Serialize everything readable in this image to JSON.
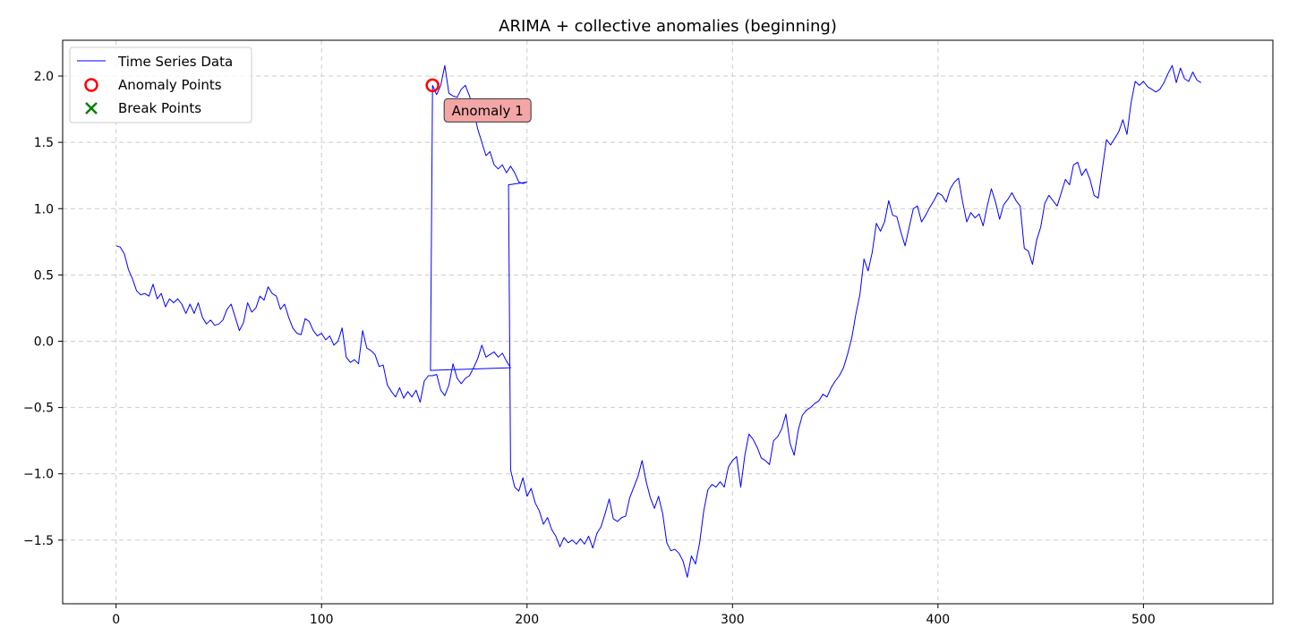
{
  "chart_data": {
    "type": "line",
    "title": "ARIMA + collective anomalies (beginning)",
    "xlabel": "",
    "ylabel": "",
    "xlim": [
      -26,
      563
    ],
    "ylim": [
      -1.98,
      2.27
    ],
    "xticks": [
      0,
      100,
      200,
      300,
      400,
      500
    ],
    "yticks": [
      -1.5,
      -1.0,
      -0.5,
      0.0,
      0.5,
      1.0,
      1.5,
      2.0
    ],
    "grid": true,
    "legend_position": "top-left",
    "legend": [
      {
        "label": "Time Series Data",
        "marker": "line",
        "color": "#0000ff"
      },
      {
        "label": "Anomaly Points",
        "marker": "circle-open",
        "color": "#ff0000"
      },
      {
        "label": "Break Points",
        "marker": "x",
        "color": "#008000"
      }
    ],
    "series": [
      {
        "name": "Time Series Data",
        "color": "#0000ff",
        "points": [
          [
            0,
            0.72
          ],
          [
            2,
            0.71
          ],
          [
            4,
            0.66
          ],
          [
            6,
            0.54
          ],
          [
            8,
            0.47
          ],
          [
            10,
            0.38
          ],
          [
            12,
            0.35
          ],
          [
            14,
            0.36
          ],
          [
            16,
            0.34
          ],
          [
            18,
            0.43
          ],
          [
            20,
            0.32
          ],
          [
            22,
            0.36
          ],
          [
            24,
            0.26
          ],
          [
            26,
            0.32
          ],
          [
            28,
            0.29
          ],
          [
            30,
            0.32
          ],
          [
            32,
            0.28
          ],
          [
            34,
            0.21
          ],
          [
            36,
            0.28
          ],
          [
            38,
            0.21
          ],
          [
            40,
            0.29
          ],
          [
            42,
            0.18
          ],
          [
            44,
            0.13
          ],
          [
            46,
            0.16
          ],
          [
            48,
            0.12
          ],
          [
            50,
            0.13
          ],
          [
            52,
            0.16
          ],
          [
            54,
            0.24
          ],
          [
            56,
            0.28
          ],
          [
            58,
            0.18
          ],
          [
            60,
            0.08
          ],
          [
            62,
            0.14
          ],
          [
            64,
            0.29
          ],
          [
            66,
            0.22
          ],
          [
            68,
            0.25
          ],
          [
            70,
            0.34
          ],
          [
            72,
            0.31
          ],
          [
            74,
            0.41
          ],
          [
            76,
            0.36
          ],
          [
            78,
            0.34
          ],
          [
            80,
            0.24
          ],
          [
            82,
            0.28
          ],
          [
            84,
            0.18
          ],
          [
            86,
            0.1
          ],
          [
            88,
            0.06
          ],
          [
            90,
            0.05
          ],
          [
            92,
            0.17
          ],
          [
            94,
            0.15
          ],
          [
            96,
            0.08
          ],
          [
            98,
            0.04
          ],
          [
            100,
            0.06
          ],
          [
            102,
            0.01
          ],
          [
            104,
            0.04
          ],
          [
            106,
            -0.03
          ],
          [
            108,
            0.0
          ],
          [
            110,
            0.1
          ],
          [
            112,
            -0.12
          ],
          [
            114,
            -0.16
          ],
          [
            116,
            -0.14
          ],
          [
            118,
            -0.17
          ],
          [
            120,
            0.08
          ],
          [
            122,
            -0.05
          ],
          [
            124,
            -0.07
          ],
          [
            126,
            -0.1
          ],
          [
            128,
            -0.19
          ],
          [
            130,
            -0.18
          ],
          [
            132,
            -0.33
          ],
          [
            134,
            -0.38
          ],
          [
            136,
            -0.42
          ],
          [
            138,
            -0.35
          ],
          [
            140,
            -0.43
          ],
          [
            142,
            -0.38
          ],
          [
            144,
            -0.42
          ],
          [
            146,
            -0.37
          ],
          [
            148,
            -0.46
          ],
          [
            150,
            -0.3
          ],
          [
            152,
            -0.26
          ],
          [
            154,
            -0.26
          ],
          [
            156,
            -0.25
          ],
          [
            158,
            -0.37
          ],
          [
            160,
            -0.41
          ],
          [
            162,
            -0.33
          ],
          [
            164,
            -0.17
          ],
          [
            166,
            -0.28
          ],
          [
            168,
            -0.32
          ],
          [
            170,
            -0.28
          ],
          [
            172,
            -0.26
          ],
          [
            174,
            -0.2
          ],
          [
            176,
            -0.13
          ],
          [
            178,
            -0.03
          ],
          [
            180,
            -0.12
          ],
          [
            182,
            -0.1
          ],
          [
            184,
            -0.08
          ],
          [
            186,
            -0.12
          ],
          [
            188,
            -0.09
          ],
          [
            190,
            -0.15
          ],
          [
            192,
            -0.2
          ],
          [
            153,
            -0.22
          ],
          [
            154,
            1.93
          ],
          [
            156,
            1.86
          ],
          [
            158,
            1.93
          ],
          [
            160,
            2.08
          ],
          [
            162,
            1.87
          ],
          [
            164,
            1.85
          ],
          [
            166,
            1.84
          ],
          [
            168,
            1.9
          ],
          [
            170,
            1.93
          ],
          [
            172,
            1.85
          ],
          [
            174,
            1.74
          ],
          [
            176,
            1.6
          ],
          [
            178,
            1.5
          ],
          [
            180,
            1.4
          ],
          [
            182,
            1.43
          ],
          [
            184,
            1.33
          ],
          [
            186,
            1.3
          ],
          [
            188,
            1.33
          ],
          [
            190,
            1.27
          ],
          [
            192,
            1.32
          ],
          [
            194,
            1.27
          ],
          [
            196,
            1.2
          ],
          [
            198,
            1.19
          ],
          [
            200,
            1.2
          ],
          [
            191,
            1.18
          ],
          [
            192,
            -0.97
          ],
          [
            194,
            -1.1
          ],
          [
            196,
            -1.13
          ],
          [
            198,
            -1.03
          ],
          [
            200,
            -1.17
          ],
          [
            202,
            -1.11
          ],
          [
            204,
            -1.22
          ],
          [
            206,
            -1.28
          ],
          [
            208,
            -1.38
          ],
          [
            210,
            -1.33
          ],
          [
            212,
            -1.42
          ],
          [
            214,
            -1.47
          ],
          [
            216,
            -1.55
          ],
          [
            218,
            -1.48
          ],
          [
            220,
            -1.52
          ],
          [
            222,
            -1.5
          ],
          [
            224,
            -1.53
          ],
          [
            226,
            -1.49
          ],
          [
            228,
            -1.53
          ],
          [
            230,
            -1.47
          ],
          [
            232,
            -1.56
          ],
          [
            234,
            -1.45
          ],
          [
            236,
            -1.4
          ],
          [
            238,
            -1.3
          ],
          [
            240,
            -1.19
          ],
          [
            242,
            -1.34
          ],
          [
            244,
            -1.36
          ],
          [
            246,
            -1.33
          ],
          [
            248,
            -1.32
          ],
          [
            250,
            -1.18
          ],
          [
            252,
            -1.1
          ],
          [
            254,
            -1.02
          ],
          [
            256,
            -0.9
          ],
          [
            258,
            -1.06
          ],
          [
            260,
            -1.18
          ],
          [
            262,
            -1.26
          ],
          [
            264,
            -1.17
          ],
          [
            266,
            -1.3
          ],
          [
            268,
            -1.52
          ],
          [
            270,
            -1.58
          ],
          [
            272,
            -1.57
          ],
          [
            274,
            -1.6
          ],
          [
            276,
            -1.66
          ],
          [
            278,
            -1.78
          ],
          [
            280,
            -1.62
          ],
          [
            282,
            -1.68
          ],
          [
            284,
            -1.52
          ],
          [
            286,
            -1.28
          ],
          [
            288,
            -1.12
          ],
          [
            290,
            -1.08
          ],
          [
            292,
            -1.1
          ],
          [
            294,
            -1.06
          ],
          [
            296,
            -1.1
          ],
          [
            298,
            -0.95
          ],
          [
            300,
            -0.9
          ],
          [
            302,
            -0.87
          ],
          [
            304,
            -1.1
          ],
          [
            306,
            -0.86
          ],
          [
            308,
            -0.7
          ],
          [
            310,
            -0.74
          ],
          [
            312,
            -0.8
          ],
          [
            314,
            -0.88
          ],
          [
            316,
            -0.9
          ],
          [
            318,
            -0.93
          ],
          [
            320,
            -0.75
          ],
          [
            322,
            -0.72
          ],
          [
            324,
            -0.66
          ],
          [
            326,
            -0.55
          ],
          [
            328,
            -0.77
          ],
          [
            330,
            -0.86
          ],
          [
            332,
            -0.67
          ],
          [
            334,
            -0.56
          ],
          [
            336,
            -0.52
          ],
          [
            338,
            -0.5
          ],
          [
            340,
            -0.47
          ],
          [
            342,
            -0.45
          ],
          [
            344,
            -0.4
          ],
          [
            346,
            -0.42
          ],
          [
            348,
            -0.35
          ],
          [
            350,
            -0.3
          ],
          [
            352,
            -0.26
          ],
          [
            354,
            -0.2
          ],
          [
            356,
            -0.1
          ],
          [
            358,
            0.02
          ],
          [
            360,
            0.2
          ],
          [
            362,
            0.35
          ],
          [
            364,
            0.62
          ],
          [
            366,
            0.53
          ],
          [
            368,
            0.67
          ],
          [
            370,
            0.89
          ],
          [
            372,
            0.83
          ],
          [
            374,
            0.9
          ],
          [
            376,
            1.06
          ],
          [
            378,
            0.95
          ],
          [
            380,
            0.94
          ],
          [
            382,
            0.82
          ],
          [
            384,
            0.72
          ],
          [
            386,
            0.86
          ],
          [
            388,
            1.0
          ],
          [
            390,
            1.02
          ],
          [
            392,
            0.9
          ],
          [
            394,
            0.95
          ],
          [
            396,
            1.01
          ],
          [
            398,
            1.06
          ],
          [
            400,
            1.12
          ],
          [
            402,
            1.1
          ],
          [
            404,
            1.05
          ],
          [
            406,
            1.15
          ],
          [
            408,
            1.2
          ],
          [
            410,
            1.23
          ],
          [
            412,
            1.05
          ],
          [
            414,
            0.9
          ],
          [
            416,
            0.97
          ],
          [
            418,
            0.93
          ],
          [
            420,
            0.96
          ],
          [
            422,
            0.87
          ],
          [
            424,
            1.02
          ],
          [
            426,
            1.15
          ],
          [
            428,
            1.05
          ],
          [
            430,
            0.92
          ],
          [
            432,
            1.03
          ],
          [
            434,
            1.07
          ],
          [
            436,
            1.12
          ],
          [
            438,
            1.06
          ],
          [
            440,
            1.02
          ],
          [
            442,
            0.7
          ],
          [
            444,
            0.68
          ],
          [
            446,
            0.58
          ],
          [
            448,
            0.76
          ],
          [
            450,
            0.86
          ],
          [
            452,
            1.04
          ],
          [
            454,
            1.1
          ],
          [
            456,
            1.06
          ],
          [
            458,
            1.02
          ],
          [
            460,
            1.12
          ],
          [
            462,
            1.22
          ],
          [
            464,
            1.18
          ],
          [
            466,
            1.33
          ],
          [
            468,
            1.35
          ],
          [
            470,
            1.25
          ],
          [
            472,
            1.3
          ],
          [
            474,
            1.22
          ],
          [
            476,
            1.1
          ],
          [
            478,
            1.08
          ],
          [
            480,
            1.3
          ],
          [
            482,
            1.52
          ],
          [
            484,
            1.48
          ],
          [
            486,
            1.53
          ],
          [
            488,
            1.58
          ],
          [
            490,
            1.67
          ],
          [
            492,
            1.56
          ],
          [
            494,
            1.8
          ],
          [
            496,
            1.96
          ],
          [
            498,
            1.93
          ],
          [
            500,
            1.96
          ],
          [
            502,
            1.92
          ],
          [
            504,
            1.9
          ],
          [
            506,
            1.88
          ],
          [
            508,
            1.9
          ],
          [
            510,
            1.95
          ],
          [
            512,
            2.02
          ],
          [
            514,
            2.08
          ],
          [
            516,
            1.95
          ],
          [
            518,
            2.06
          ],
          [
            520,
            1.98
          ],
          [
            522,
            1.96
          ],
          [
            524,
            2.03
          ],
          [
            526,
            1.97
          ],
          [
            528,
            1.95
          ]
        ]
      }
    ],
    "anomaly_points": [
      {
        "x": 154,
        "y": 1.93,
        "label": "Anomaly 1"
      }
    ],
    "break_points": []
  }
}
